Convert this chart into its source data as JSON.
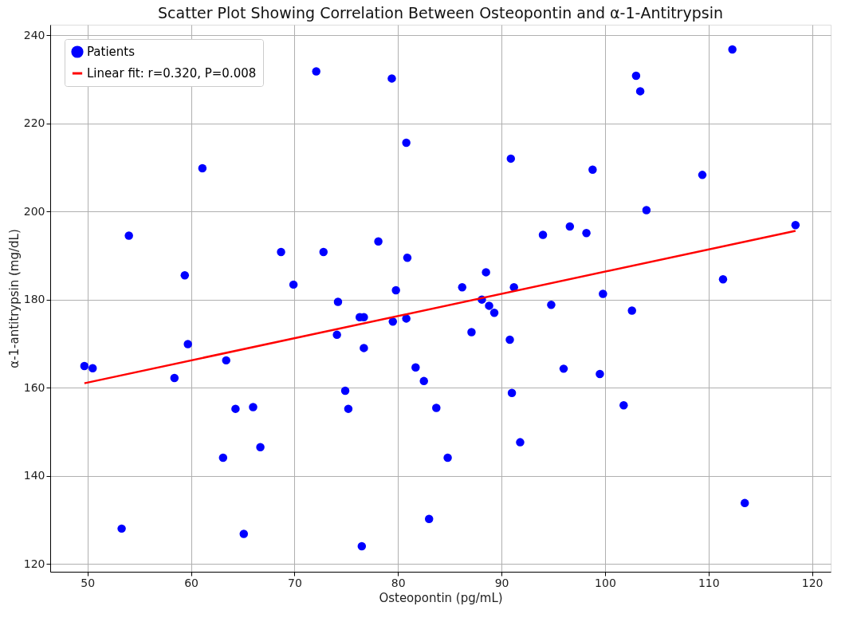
{
  "chart_data": {
    "type": "scatter",
    "title": "Scatter Plot Showing Correlation Between Osteopontin and α-1-Antitrypsin",
    "xlabel": "Osteopontin (pg/mL)",
    "ylabel": "α-1-antitrypsin (mg/dL)",
    "xlim": [
      46.4,
      121.8
    ],
    "ylim": [
      118.2,
      242.4
    ],
    "xticks": [
      50,
      60,
      70,
      80,
      90,
      100,
      110,
      120
    ],
    "yticks": [
      120,
      140,
      160,
      180,
      200,
      220,
      240
    ],
    "grid": true,
    "legend": "top left",
    "marker": "circle",
    "series": [
      {
        "name": "Patients",
        "color": "#0000ff",
        "x": [
          49.7,
          50.5,
          54.0,
          53.3,
          58.4,
          59.4,
          59.7,
          61.1,
          63.4,
          63.1,
          64.3,
          65.1,
          66.0,
          66.7,
          68.7,
          69.9,
          72.1,
          72.8,
          74.2,
          74.1,
          74.9,
          75.2,
          76.3,
          76.7,
          76.7,
          76.5,
          78.1,
          79.4,
          79.5,
          79.8,
          80.8,
          80.8,
          80.9,
          81.7,
          82.5,
          83.0,
          83.7,
          84.8,
          86.2,
          87.1,
          88.1,
          88.5,
          88.8,
          89.3,
          90.8,
          91.0,
          91.2,
          90.9,
          91.8,
          94.0,
          94.8,
          96.0,
          96.6,
          98.2,
          98.8,
          99.5,
          99.8,
          101.8,
          102.6,
          103.0,
          103.4,
          104.0,
          109.4,
          111.4,
          112.3,
          113.5,
          118.4
        ],
        "values": [
          164.9,
          164.4,
          194.5,
          128,
          162.2,
          185.5,
          169.9,
          209.8,
          166.2,
          144.1,
          155.2,
          126.8,
          155.6,
          146.5,
          190.8,
          183.4,
          231.8,
          190.8,
          179.5,
          172,
          159.3,
          155.2,
          176,
          176,
          169,
          124,
          193.2,
          230.2,
          175,
          182.1,
          215.6,
          175.7,
          189.5,
          164.6,
          161.5,
          130.2,
          155.4,
          144.1,
          182.8,
          172.6,
          180,
          186.2,
          178.6,
          177,
          170.9,
          158.8,
          182.8,
          212,
          147.6,
          194.7,
          178.8,
          164.3,
          196.6,
          195.1,
          209.5,
          163.1,
          181.3,
          156,
          177.5,
          230.8,
          227.3,
          200.3,
          208.3,
          184.6,
          236.8,
          133.8,
          196.9
        ]
      },
      {
        "name": "Linear fit: r=0.320, P=0.008",
        "type": "line",
        "color": "#ff0000",
        "line_style": "solid",
        "marker": "none",
        "x": [
          49.7,
          118.4
        ],
        "values": [
          161,
          195.6
        ]
      }
    ]
  }
}
